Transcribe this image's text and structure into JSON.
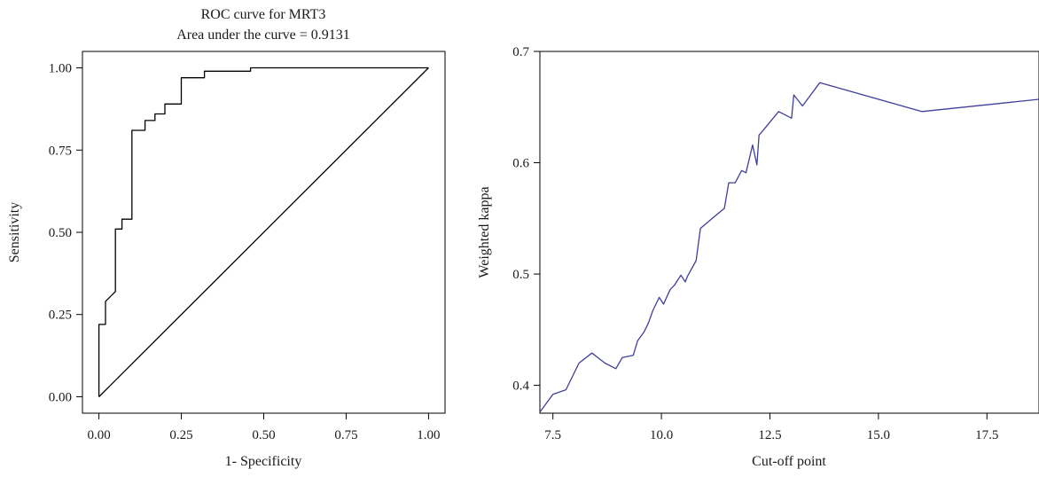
{
  "chart_data": [
    {
      "type": "line",
      "title": "ROC curve for MRT3",
      "subtitle": "Area under the curve = 0.9131",
      "xlabel": "1- Specificity",
      "ylabel": "Sensitivity",
      "xlim": [
        -0.05,
        1.05
      ],
      "ylim": [
        -0.05,
        1.05
      ],
      "x_ticks": [
        "0.00",
        "0.25",
        "0.50",
        "0.75",
        "1.00"
      ],
      "y_ticks": [
        "0.00",
        "0.25",
        "0.50",
        "0.75",
        "1.00"
      ],
      "grid": false,
      "series": [
        {
          "color": "#000000",
          "x": [
            0.0,
            0.0,
            0.02,
            0.02,
            0.05,
            0.05,
            0.07,
            0.07,
            0.1,
            0.1,
            0.14,
            0.14,
            0.17,
            0.17,
            0.2,
            0.2,
            0.25,
            0.25,
            0.32,
            0.32,
            0.46,
            0.46,
            1.0
          ],
          "y": [
            0.0,
            0.22,
            0.22,
            0.29,
            0.32,
            0.51,
            0.51,
            0.54,
            0.54,
            0.81,
            0.81,
            0.84,
            0.84,
            0.86,
            0.86,
            0.89,
            0.89,
            0.97,
            0.97,
            0.99,
            0.99,
            1.0,
            1.0
          ]
        },
        {
          "color": "#000000",
          "x": [
            0.0,
            1.0
          ],
          "y": [
            0.0,
            1.0
          ]
        }
      ]
    },
    {
      "type": "line",
      "xlabel": "Cut-off point",
      "ylabel": "Weighted kappa",
      "xlim": [
        7.2,
        18.7
      ],
      "ylim": [
        0.375,
        0.7
      ],
      "x_ticks": [
        "7.5",
        "10.0",
        "12.5",
        "15.0",
        "17.5"
      ],
      "y_ticks": [
        "0.4",
        "0.5",
        "0.6",
        "0.7"
      ],
      "grid": false,
      "series": [
        {
          "color": "#3f3f9a",
          "x": [
            7.2,
            7.5,
            7.8,
            8.1,
            8.4,
            8.7,
            8.95,
            9.1,
            9.35,
            9.45,
            9.6,
            9.7,
            9.8,
            9.95,
            10.05,
            10.2,
            10.3,
            10.45,
            10.55,
            10.6,
            10.8,
            10.9,
            11.2,
            11.45,
            11.55,
            11.7,
            11.85,
            11.95,
            12.1,
            12.2,
            12.25,
            12.3,
            12.7,
            13.0,
            13.05,
            13.25,
            13.65,
            16.0,
            18.7
          ],
          "y": [
            0.376,
            0.392,
            0.396,
            0.42,
            0.429,
            0.42,
            0.415,
            0.425,
            0.427,
            0.44,
            0.448,
            0.456,
            0.467,
            0.479,
            0.473,
            0.486,
            0.49,
            0.499,
            0.493,
            0.498,
            0.512,
            0.541,
            0.551,
            0.559,
            0.582,
            0.582,
            0.593,
            0.591,
            0.616,
            0.598,
            0.625,
            0.627,
            0.646,
            0.64,
            0.661,
            0.651,
            0.672,
            0.646,
            0.657
          ]
        }
      ]
    }
  ]
}
